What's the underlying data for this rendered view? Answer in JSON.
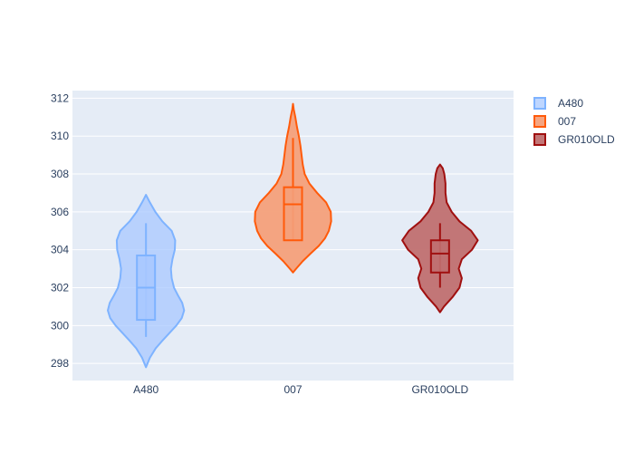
{
  "chart_data": {
    "type": "violin",
    "title": "",
    "xlabel": "",
    "ylabel": "",
    "categories": [
      "A480",
      "007",
      "GR010OLD"
    ],
    "ylim": [
      297.1,
      312.4
    ],
    "y_ticks": [
      298,
      300,
      302,
      304,
      306,
      308,
      310,
      312
    ],
    "grid": true,
    "legend": {
      "position": "top-right",
      "entries": [
        "A480",
        "007",
        "GR010OLD"
      ]
    },
    "series": [
      {
        "name": "A480",
        "category": "A480",
        "color": "#7eb3ff",
        "fill": "#a8c8ff",
        "fill_opacity": 0.75,
        "box": {
          "min": 299.4,
          "q1": 300.3,
          "median": 302.0,
          "q3": 303.7,
          "max": 305.4
        },
        "density": [
          [
            297.8,
            0.0
          ],
          [
            298.3,
            0.1
          ],
          [
            298.8,
            0.25
          ],
          [
            299.2,
            0.42
          ],
          [
            299.6,
            0.6
          ],
          [
            300.0,
            0.78
          ],
          [
            300.4,
            0.92
          ],
          [
            300.8,
            0.98
          ],
          [
            301.2,
            0.93
          ],
          [
            301.6,
            0.82
          ],
          [
            302.0,
            0.72
          ],
          [
            302.5,
            0.66
          ],
          [
            303.0,
            0.64
          ],
          [
            303.5,
            0.68
          ],
          [
            304.0,
            0.74
          ],
          [
            304.5,
            0.75
          ],
          [
            305.0,
            0.66
          ],
          [
            305.5,
            0.42
          ],
          [
            306.0,
            0.24
          ],
          [
            306.5,
            0.1
          ],
          [
            306.9,
            0.0
          ]
        ]
      },
      {
        "name": "007",
        "category": "007",
        "color": "#ff5a0a",
        "fill": "#f4a07a",
        "fill_opacity": 0.95,
        "box": {
          "min": 304.5,
          "q1": 304.5,
          "median": 306.4,
          "q3": 307.3,
          "max": 309.9
        },
        "density": [
          [
            302.8,
            0.0
          ],
          [
            303.0,
            0.08
          ],
          [
            303.4,
            0.25
          ],
          [
            303.8,
            0.45
          ],
          [
            304.2,
            0.66
          ],
          [
            304.6,
            0.82
          ],
          [
            305.0,
            0.92
          ],
          [
            305.5,
            0.98
          ],
          [
            306.0,
            0.97
          ],
          [
            306.5,
            0.85
          ],
          [
            307.0,
            0.62
          ],
          [
            307.5,
            0.42
          ],
          [
            308.0,
            0.3
          ],
          [
            308.5,
            0.25
          ],
          [
            309.0,
            0.22
          ],
          [
            309.5,
            0.19
          ],
          [
            310.0,
            0.15
          ],
          [
            310.5,
            0.1
          ],
          [
            311.0,
            0.06
          ],
          [
            311.4,
            0.02
          ],
          [
            311.7,
            0.0
          ]
        ]
      },
      {
        "name": "GR010OLD",
        "category": "GR010OLD",
        "color": "#a01010",
        "fill": "#c07070",
        "fill_opacity": 0.95,
        "box": {
          "min": 302.0,
          "q1": 302.8,
          "median": 303.8,
          "q3": 304.5,
          "max": 305.4
        },
        "density": [
          [
            300.7,
            0.0
          ],
          [
            301.0,
            0.1
          ],
          [
            301.5,
            0.32
          ],
          [
            302.0,
            0.5
          ],
          [
            302.5,
            0.56
          ],
          [
            303.0,
            0.48
          ],
          [
            303.5,
            0.56
          ],
          [
            304.0,
            0.82
          ],
          [
            304.5,
            0.97
          ],
          [
            305.0,
            0.8
          ],
          [
            305.5,
            0.5
          ],
          [
            306.0,
            0.3
          ],
          [
            306.5,
            0.17
          ],
          [
            307.0,
            0.14
          ],
          [
            307.5,
            0.14
          ],
          [
            308.0,
            0.11
          ],
          [
            308.3,
            0.07
          ],
          [
            308.5,
            0.0
          ]
        ]
      }
    ]
  }
}
